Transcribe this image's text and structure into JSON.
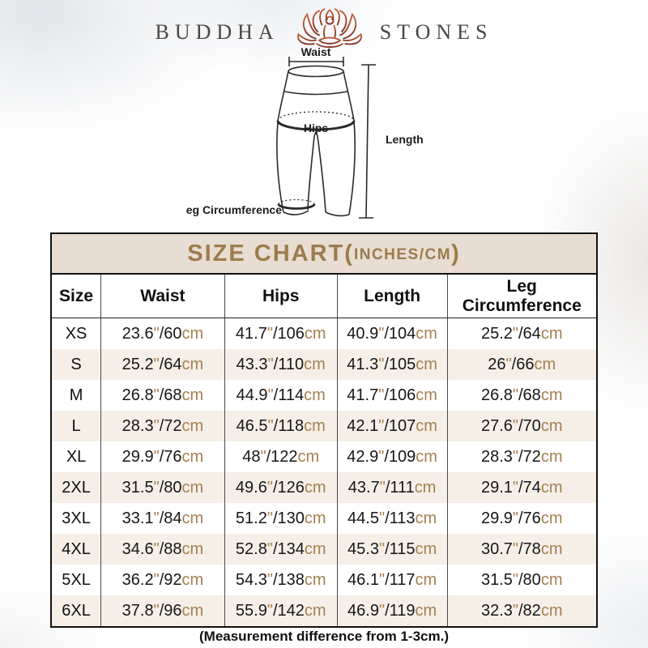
{
  "brand": {
    "left": "BUDDHA",
    "right": "STONES",
    "icon": "lotus-meditation"
  },
  "diagram": {
    "labels": {
      "waist": "Waist",
      "hips": "Hips",
      "length": "Length",
      "leg_circumference": "Leg Circumference"
    }
  },
  "size_chart": {
    "title_main": "SIZE CHART(",
    "title_small": "INCHES/CM",
    "title_close": ")",
    "columns": [
      "Size",
      "Waist",
      "Hips",
      "Length",
      "Leg Circumference"
    ],
    "rows": [
      {
        "size": "XS",
        "cells": [
          "23.6\"/60cm",
          "41.7\"/106cm",
          "40.9\"/104cm",
          "25.2\"/64cm"
        ]
      },
      {
        "size": "S",
        "cells": [
          "25.2\"/64cm",
          "43.3\"/110cm",
          "41.3\"/105cm",
          "26\"/66cm"
        ]
      },
      {
        "size": "M",
        "cells": [
          "26.8\"/68cm",
          "44.9\"/114cm",
          "41.7\"/106cm",
          "26.8\"/68cm"
        ]
      },
      {
        "size": "L",
        "cells": [
          "28.3\"/72cm",
          "46.5\"/118cm",
          "42.1\"/107cm",
          "27.6\"/70cm"
        ]
      },
      {
        "size": "XL",
        "cells": [
          "29.9\"/76cm",
          "48\"/122cm",
          "42.9\"/109cm",
          "28.3\"/72cm"
        ]
      },
      {
        "size": "2XL",
        "cells": [
          "31.5\"/80cm",
          "49.6\"/126cm",
          "43.7\"/111cm",
          "29.1\"/74cm"
        ]
      },
      {
        "size": "3XL",
        "cells": [
          "33.1\"/84cm",
          "51.2\"/130cm",
          "44.5\"/113cm",
          "29.9\"/76cm"
        ]
      },
      {
        "size": "4XL",
        "cells": [
          "34.6\"/88cm",
          "52.8\"/134cm",
          "45.3\"/115cm",
          "30.7\"/78cm"
        ]
      },
      {
        "size": "5XL",
        "cells": [
          "36.2\"/92cm",
          "54.3\"/138cm",
          "46.1\"/117cm",
          "31.5\"/80cm"
        ]
      },
      {
        "size": "6XL",
        "cells": [
          "37.8\"/96cm",
          "55.9\"/142cm",
          "46.9\"/119cm",
          "32.3\"/82cm"
        ]
      }
    ]
  },
  "footnote": "(Measurement difference from 1-3cm.)",
  "colors": {
    "title_band_bg": "#e8ddd2",
    "title_text": "#9c7c4c",
    "alt_row_bg": "#f5efe8",
    "unit_accent": "#a5804f",
    "lotus_top": "#c0603c",
    "lotus_bottom": "#7e2f20",
    "line_art": "#2a2a2a"
  }
}
